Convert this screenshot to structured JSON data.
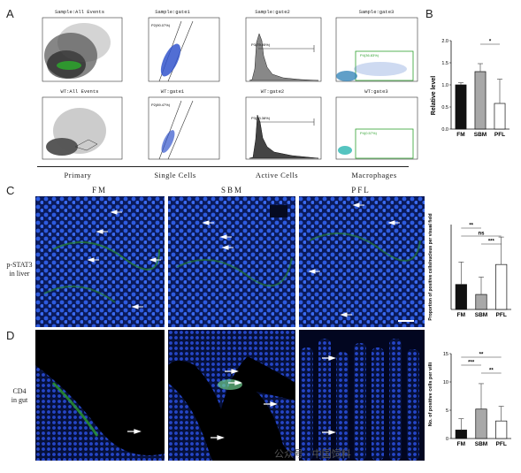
{
  "panels": {
    "A": "A",
    "B": "B",
    "C": "C",
    "D": "D"
  },
  "flow": {
    "top_titles": [
      "Sample:All Events",
      "Sample:gate1",
      "Sample:gate2",
      "Sample:gate3"
    ],
    "bottom_titles": [
      "WT:All Events",
      "WT:gate1",
      "WT:gate2",
      "WT:gate3"
    ],
    "categories": [
      "Primary",
      "Single Cells",
      "Active Cells",
      "Macrophages"
    ],
    "gate_labels": {
      "g1": "P2(90.07%)",
      "g2": "P3(79.95%)",
      "g3": "P4(36.83%)",
      "g1b": "P2(89.47%)",
      "g2b": "P3(83.38%)",
      "g3b": "P4(0.57%)"
    }
  },
  "chart_data": [
    {
      "type": "bar",
      "panel": "B",
      "categories": [
        "FM",
        "SBM",
        "PFL"
      ],
      "values": [
        1.0,
        1.3,
        0.58
      ],
      "errors": [
        0.05,
        0.18,
        0.55
      ],
      "ylabel": "Relative level",
      "ylim": [
        0,
        2.0
      ],
      "yticks": [
        "0.0",
        "0.5",
        "1.0",
        "1.5",
        "2.0"
      ],
      "significance": [
        {
          "pair": [
            "SBM",
            "PFL"
          ],
          "label": "*"
        }
      ],
      "colors": [
        "#111111",
        "#a8a8a8",
        "#ffffff"
      ]
    },
    {
      "type": "bar",
      "panel": "C",
      "categories": [
        "FM",
        "SBM",
        "PFL"
      ],
      "values": [
        0.05,
        0.03,
        0.09
      ],
      "errors": [
        0.045,
        0.035,
        0.055
      ],
      "ylabel": "Proportion of positive cells/nucleus per visual field",
      "ylim": [
        0,
        0.17
      ],
      "significance": [
        {
          "pair": [
            "FM",
            "SBM"
          ],
          "label": "**"
        },
        {
          "pair": [
            "FM",
            "PFL"
          ],
          "label": "ns"
        },
        {
          "pair": [
            "SBM",
            "PFL"
          ],
          "label": "***"
        }
      ],
      "colors": [
        "#111111",
        "#a8a8a8",
        "#ffffff"
      ]
    },
    {
      "type": "bar",
      "panel": "D",
      "categories": [
        "FM",
        "SBM",
        "PFL"
      ],
      "values": [
        1.5,
        5.2,
        3.1
      ],
      "errors": [
        2.0,
        4.5,
        2.6
      ],
      "ylabel": "No. of positive cells per villi",
      "ylim": [
        0,
        15
      ],
      "yticks": [
        "0",
        "5",
        "10",
        "15"
      ],
      "significance": [
        {
          "pair": [
            "FM",
            "PFL"
          ],
          "label": "**"
        },
        {
          "pair": [
            "FM",
            "SBM"
          ],
          "label": "***"
        },
        {
          "pair": [
            "SBM",
            "PFL"
          ],
          "label": "**"
        }
      ],
      "colors": [
        "#111111",
        "#a8a8a8",
        "#ffffff"
      ]
    }
  ],
  "micro": {
    "col_heads": [
      "FM",
      "SBM",
      "PFL"
    ],
    "row_C": "p-STAT3\nin liver",
    "row_D": "CD4\nin gut"
  },
  "watermark": "公众号 · 中国饲料"
}
